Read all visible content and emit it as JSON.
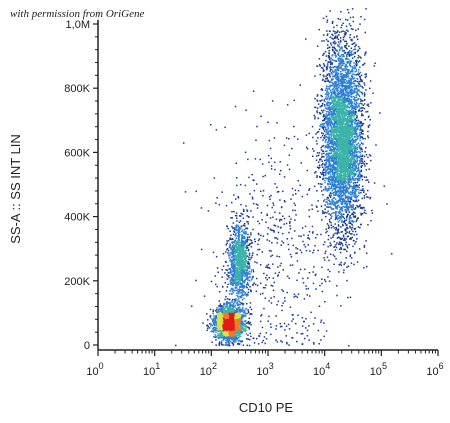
{
  "chart_data": {
    "type": "scatter",
    "subtype": "flow-cytometry density dot plot",
    "watermark": "with permission from OriGene",
    "xlabel": "CD10 PE",
    "ylabel": "SS-A :: SS INT LIN",
    "x_scale": "log",
    "y_scale": "linear",
    "xlim": [
      1,
      1000000
    ],
    "ylim": [
      0,
      1000000
    ],
    "x_ticks": [
      {
        "value": 1,
        "base": "10",
        "exp": "0"
      },
      {
        "value": 10,
        "base": "10",
        "exp": "1"
      },
      {
        "value": 100,
        "base": "10",
        "exp": "2"
      },
      {
        "value": 1000,
        "base": "10",
        "exp": "3"
      },
      {
        "value": 10000,
        "base": "10",
        "exp": "4"
      },
      {
        "value": 100000,
        "base": "10",
        "exp": "5"
      },
      {
        "value": 1000000,
        "base": "10",
        "exp": "6"
      }
    ],
    "y_ticks": [
      {
        "value": 0,
        "label": "0"
      },
      {
        "value": 200000,
        "label": "200K"
      },
      {
        "value": 400000,
        "label": "400K"
      },
      {
        "value": 600000,
        "label": "600K"
      },
      {
        "value": 800000,
        "label": "800K"
      },
      {
        "value": 1000000,
        "label": "1,0M"
      }
    ],
    "populations": [
      {
        "x_center": 20000,
        "y_center": 650000,
        "x_spread_log": 0.18,
        "y_spread": 150000,
        "weight": 0.52
      },
      {
        "x_center": 200,
        "y_center": 70000,
        "x_spread_log": 0.12,
        "y_spread": 25000,
        "weight": 0.3
      },
      {
        "x_center": 300,
        "y_center": 260000,
        "x_spread_log": 0.1,
        "y_spread": 60000,
        "weight": 0.12
      },
      {
        "x_center": 1500,
        "y_center": 300000,
        "x_spread_log": 0.55,
        "y_spread": 200000,
        "weight": 0.06
      }
    ],
    "grid": false,
    "legend": "none",
    "colors": {
      "low": "#1b3a8c",
      "mid_low": "#2d7fd1",
      "mid": "#3bb3a8",
      "mid_high": "#d9e04a",
      "high": "#f07b2a",
      "peak": "#e01a1a",
      "axis": "#222222"
    }
  }
}
